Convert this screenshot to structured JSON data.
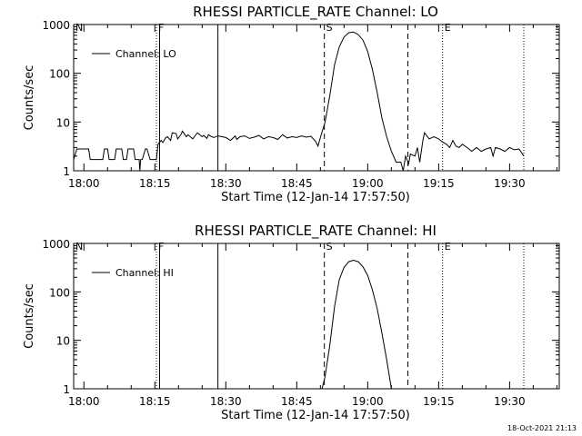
{
  "footer": {
    "timestamp": "18-Oct-2021 21:13"
  },
  "chart_data": [
    {
      "type": "line",
      "title": "RHESSI PARTICLE_RATE Channel: LO",
      "xlabel": "Start Time (12-Jan-14 17:57:50)",
      "ylabel": "Counts/sec",
      "yscale": "log",
      "ylim": [
        1,
        1000
      ],
      "xlim": [
        "17:57:50",
        "19:40:30"
      ],
      "x_ticks": [
        "18:00",
        "18:15",
        "18:30",
        "18:45",
        "19:00",
        "19:15",
        "19:30"
      ],
      "y_ticks": [
        "1",
        "10",
        "100",
        "1000"
      ],
      "legend": {
        "position": "top-left",
        "entries": [
          "Channel: LO"
        ]
      },
      "vlines": [
        {
          "x": "17:57:50",
          "style": "dotted",
          "label": "N"
        },
        {
          "x": "18:15:20",
          "style": "dotted",
          "label": "F"
        },
        {
          "x": "18:16:00",
          "style": "solid",
          "label": ""
        },
        {
          "x": "18:28:20",
          "style": "solid",
          "label": ""
        },
        {
          "x": "18:50:50",
          "style": "dashed",
          "label": "S"
        },
        {
          "x": "19:08:30",
          "style": "dashed",
          "label": ""
        },
        {
          "x": "19:15:50",
          "style": "dotted",
          "label": "E"
        },
        {
          "x": "19:33:00",
          "style": "dotted",
          "label": ""
        }
      ],
      "series": [
        {
          "name": "Channel: LO",
          "x": [
            "17:57:50",
            "17:58:30",
            "18:01:00",
            "18:01:20",
            "18:04:00",
            "18:04:20",
            "18:05:00",
            "18:05:20",
            "18:06:30",
            "18:06:50",
            "18:08:00",
            "18:08:20",
            "18:09:00",
            "18:09:20",
            "18:10:30",
            "18:10:50",
            "18:11:40",
            "18:11:50",
            "18:12:00",
            "18:12:20",
            "18:13:00",
            "18:13:20",
            "18:14:00",
            "18:14:20",
            "18:15:20",
            "18:15:40",
            "18:16:20",
            "18:16:40",
            "18:17:20",
            "18:17:40",
            "18:18:20",
            "18:18:40",
            "18:19:30",
            "18:19:50",
            "18:20:30",
            "18:20:50",
            "18:21:40",
            "18:22:00",
            "18:22:40",
            "18:23:00",
            "18:23:40",
            "18:24:00",
            "18:25:00",
            "18:25:20",
            "18:26:00",
            "18:26:20",
            "18:27:00",
            "18:27:30",
            "18:28:20",
            "18:30:00",
            "18:31:00",
            "18:32:00",
            "18:32:20",
            "18:33:00",
            "18:34:00",
            "18:35:00",
            "18:36:00",
            "18:37:00",
            "18:38:00",
            "18:39:00",
            "18:40:00",
            "18:41:00",
            "18:42:00",
            "18:43:00",
            "18:44:00",
            "18:45:00",
            "18:46:00",
            "18:47:00",
            "18:48:00",
            "18:49:00",
            "18:49:30",
            "18:50:00",
            "18:51:00",
            "18:52:00",
            "18:53:00",
            "18:54:00",
            "18:55:00",
            "18:56:00",
            "18:57:00",
            "18:58:00",
            "18:59:00",
            "19:00:00",
            "19:01:00",
            "19:02:00",
            "19:03:00",
            "19:04:00",
            "19:05:00",
            "19:06:00",
            "19:07:00",
            "19:07:30",
            "19:08:00",
            "19:08:40",
            "19:09:00",
            "19:10:00",
            "19:10:30",
            "19:11:00",
            "19:11:40",
            "19:12:00",
            "19:13:00",
            "19:14:00",
            "19:15:00",
            "19:15:40",
            "19:16:40",
            "19:17:20",
            "19:18:00",
            "19:18:40",
            "19:19:20",
            "19:20:00",
            "19:21:00",
            "19:22:00",
            "19:23:00",
            "19:24:00",
            "19:25:00",
            "19:26:00",
            "19:26:30",
            "19:27:00",
            "19:28:00",
            "19:29:00",
            "19:30:00",
            "19:31:00",
            "19:32:00",
            "19:33:00"
          ],
          "values": [
            1.7,
            2.8,
            2.8,
            1.7,
            1.7,
            2.8,
            2.8,
            1.7,
            1.7,
            2.8,
            2.8,
            1.7,
            1.7,
            2.8,
            2.8,
            1.7,
            1.7,
            1.0,
            1.7,
            1.7,
            2.8,
            2.8,
            1.7,
            1.7,
            1.7,
            3.5,
            4.2,
            3.8,
            4.8,
            5.0,
            4.2,
            6.0,
            5.8,
            4.5,
            5.5,
            6.5,
            5.0,
            5.5,
            4.8,
            4.5,
            5.5,
            6.0,
            5.0,
            5.3,
            4.6,
            5.5,
            5.0,
            4.8,
            5.2,
            4.8,
            4.2,
            5.2,
            4.4,
            5.0,
            5.2,
            4.6,
            4.9,
            5.3,
            4.5,
            5.0,
            4.8,
            4.4,
            5.5,
            4.7,
            5.0,
            4.8,
            5.2,
            4.9,
            5.1,
            4.0,
            3.2,
            4.8,
            10,
            35,
            150,
            350,
            550,
            680,
            700,
            620,
            480,
            280,
            120,
            40,
            12,
            5,
            2.5,
            1.5,
            1.5,
            1.0,
            2.0,
            1.4,
            2.2,
            2.0,
            3.0,
            1.5,
            4.2,
            6.0,
            4.5,
            5.0,
            4.5,
            4.0,
            3.5,
            3.0,
            4.2,
            3.2,
            3.0,
            3.5,
            3.0,
            2.5,
            3.0,
            2.5,
            2.8,
            3.0,
            2.0,
            3.0,
            2.8,
            2.5,
            3.0,
            2.7,
            2.8,
            2.0
          ]
        }
      ]
    },
    {
      "type": "line",
      "title": "RHESSI PARTICLE_RATE Channel: HI",
      "xlabel": "Start Time (12-Jan-14 17:57:50)",
      "ylabel": "Counts/sec",
      "yscale": "log",
      "ylim": [
        1,
        1000
      ],
      "xlim": [
        "17:57:50",
        "19:40:30"
      ],
      "x_ticks": [
        "18:00",
        "18:15",
        "18:30",
        "18:45",
        "19:00",
        "19:15",
        "19:30"
      ],
      "y_ticks": [
        "1",
        "10",
        "100",
        "1000"
      ],
      "legend": {
        "position": "top-left",
        "entries": [
          "Channel: HI"
        ]
      },
      "vlines": [
        {
          "x": "17:57:50",
          "style": "dotted",
          "label": "N"
        },
        {
          "x": "18:15:20",
          "style": "dotted",
          "label": "F"
        },
        {
          "x": "18:16:00",
          "style": "solid",
          "label": ""
        },
        {
          "x": "18:28:20",
          "style": "solid",
          "label": ""
        },
        {
          "x": "18:50:50",
          "style": "dashed",
          "label": "S"
        },
        {
          "x": "19:08:30",
          "style": "dashed",
          "label": ""
        },
        {
          "x": "19:15:50",
          "style": "dotted",
          "label": "E"
        },
        {
          "x": "19:33:00",
          "style": "dotted",
          "label": ""
        }
      ],
      "series": [
        {
          "name": "Channel: HI",
          "x": [
            "18:50:20",
            "18:51:00",
            "18:52:00",
            "18:53:00",
            "18:54:00",
            "18:55:00",
            "18:56:00",
            "18:57:00",
            "18:58:00",
            "18:59:00",
            "19:00:00",
            "19:01:00",
            "19:02:00",
            "19:03:00",
            "19:04:00",
            "19:05:00"
          ],
          "values": [
            1.0,
            1.8,
            8,
            50,
            180,
            320,
            420,
            450,
            420,
            330,
            220,
            110,
            45,
            14,
            4,
            1.0
          ]
        }
      ]
    }
  ]
}
